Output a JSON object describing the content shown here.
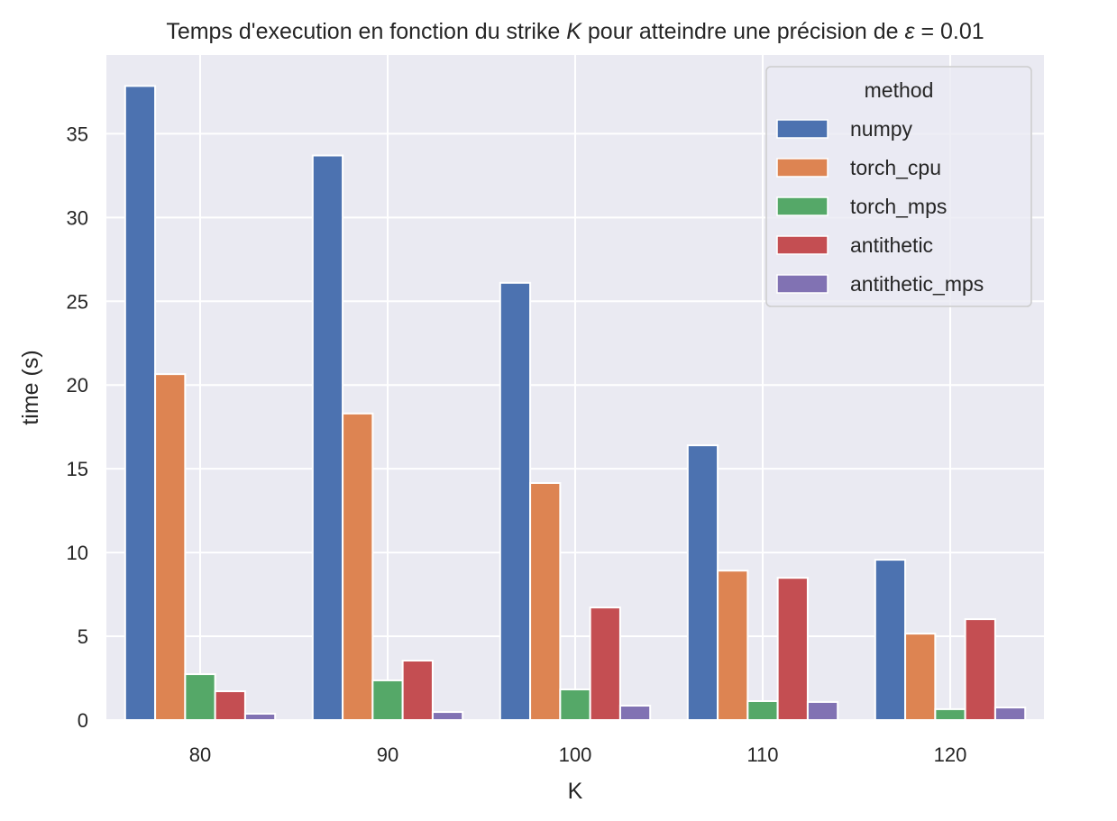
{
  "chart_data": {
    "type": "bar",
    "title_parts": {
      "prefix": "Temps d'execution en fonction du strike ",
      "k_symbol": "K",
      "middle": " pour atteindre une précision de ",
      "eps_symbol": "ε",
      "suffix": " = 0.01"
    },
    "title": "Temps d'execution en fonction du strike K pour atteindre une précision de ε = 0.01",
    "xlabel": "K",
    "ylabel": "time (s)",
    "categories": [
      "80",
      "90",
      "100",
      "110",
      "120"
    ],
    "ylim": [
      0,
      39.7
    ],
    "yticks": [
      0,
      5,
      10,
      15,
      20,
      25,
      30,
      35
    ],
    "grid": true,
    "background": "#eaeaf2",
    "legend": {
      "title": "method",
      "placement": "top-right"
    },
    "series": [
      {
        "name": "numpy",
        "color": "#4c72b0",
        "values": [
          37.85,
          33.7,
          26.1,
          16.4,
          9.57
        ]
      },
      {
        "name": "torch_cpu",
        "color": "#dd8452",
        "values": [
          20.65,
          18.3,
          14.15,
          8.92,
          5.16
        ]
      },
      {
        "name": "torch_mps",
        "color": "#55a868",
        "values": [
          2.74,
          2.37,
          1.83,
          1.13,
          0.65
        ]
      },
      {
        "name": "antithetic",
        "color": "#c44e52",
        "values": [
          1.72,
          3.55,
          6.72,
          8.49,
          6.02
        ]
      },
      {
        "name": "antithetic_mps",
        "color": "#8172b3",
        "values": [
          0.38,
          0.48,
          0.86,
          1.08,
          0.75
        ]
      }
    ]
  }
}
